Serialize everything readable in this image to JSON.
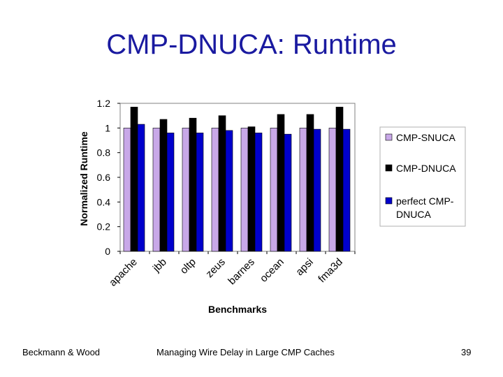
{
  "slide": {
    "title": "CMP-DNUCA: Runtime",
    "footer_left": "Beckmann & Wood",
    "footer_center": "Managing Wire Delay in Large CMP Caches",
    "footer_right": "39"
  },
  "chart_data": {
    "type": "bar",
    "title": "",
    "xlabel": "Benchmarks",
    "ylabel": "Normalized Runtime",
    "ylim": [
      0,
      1.2
    ],
    "yticks": [
      "0",
      "0.2",
      "0.4",
      "0.6",
      "0.8",
      "1",
      "1.2"
    ],
    "grid": false,
    "legend_position": "right",
    "categories": [
      "apache",
      "jbb",
      "oltp",
      "zeus",
      "barnes",
      "ocean",
      "apsi",
      "fma3d"
    ],
    "series": [
      {
        "name": "CMP-SNUCA",
        "color": "#c8a8e8",
        "values": [
          1.0,
          1.0,
          1.0,
          1.0,
          1.0,
          1.0,
          1.0,
          1.0
        ]
      },
      {
        "name": "CMP-DNUCA",
        "color": "#000000",
        "values": [
          1.17,
          1.07,
          1.08,
          1.1,
          1.01,
          1.11,
          1.11,
          1.17
        ]
      },
      {
        "name": "perfect CMP-DNUCA",
        "color": "#0000cc",
        "legend_lines": [
          "perfect CMP-",
          "DNUCA"
        ],
        "values": [
          1.03,
          0.96,
          0.96,
          0.98,
          0.96,
          0.95,
          0.99,
          0.99
        ]
      }
    ]
  }
}
